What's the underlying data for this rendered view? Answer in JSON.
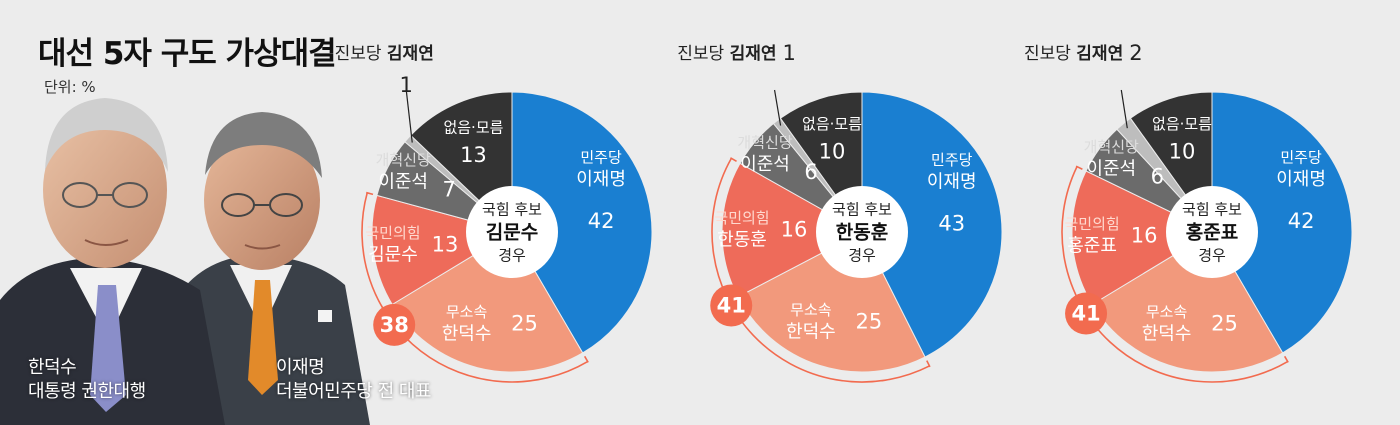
{
  "header": {
    "title": "대선 5자 구도 가상대결",
    "unit": "단위: %"
  },
  "people": [
    {
      "name": "한덕수",
      "role": "대통령 권한대행"
    },
    {
      "name": "이재명",
      "role": "더불어민주당 전 대표"
    }
  ],
  "colors": {
    "democratic": "#1a7fd1",
    "independent": "#f2997c",
    "ppp": "#ee6b5a",
    "reform": "#6b6b6b",
    "none": "#333333",
    "progressive": "#bdbdbd",
    "combined_circle": "#f26b4f"
  },
  "chart_data": [
    {
      "type": "pie",
      "center": {
        "line1": "국힘 후보",
        "line2": "김문수",
        "line3": "경우"
      },
      "combined_total": "38",
      "slices": [
        {
          "party": "민주당",
          "name": "이재명",
          "value": 42,
          "color_key": "democratic"
        },
        {
          "party": "무소속",
          "name": "한덕수",
          "value": 25,
          "color_key": "independent"
        },
        {
          "party": "국민의힘",
          "name": "김문수",
          "value": 13,
          "color_key": "ppp"
        },
        {
          "party": "개혁신당",
          "name": "이준석",
          "value": 7,
          "color_key": "reform"
        },
        {
          "party": "진보당",
          "name": "김재연",
          "value": 1,
          "color_key": "progressive"
        },
        {
          "party": "없음·모름",
          "name": "",
          "value": 13,
          "color_key": "none"
        }
      ]
    },
    {
      "type": "pie",
      "center": {
        "line1": "국힘 후보",
        "line2": "한동훈",
        "line3": "경우"
      },
      "combined_total": "41",
      "slices": [
        {
          "party": "민주당",
          "name": "이재명",
          "value": 43,
          "color_key": "democratic"
        },
        {
          "party": "무소속",
          "name": "한덕수",
          "value": 25,
          "color_key": "independent"
        },
        {
          "party": "국민의힘",
          "name": "한동훈",
          "value": 16,
          "color_key": "ppp"
        },
        {
          "party": "개혁신당",
          "name": "이준석",
          "value": 6,
          "color_key": "reform"
        },
        {
          "party": "진보당",
          "name": "김재연",
          "value": 1,
          "color_key": "progressive"
        },
        {
          "party": "없음·모름",
          "name": "",
          "value": 10,
          "color_key": "none"
        }
      ]
    },
    {
      "type": "pie",
      "center": {
        "line1": "국힘 후보",
        "line2": "홍준표",
        "line3": "경우"
      },
      "combined_total": "41",
      "slices": [
        {
          "party": "민주당",
          "name": "이재명",
          "value": 42,
          "color_key": "democratic"
        },
        {
          "party": "무소속",
          "name": "한덕수",
          "value": 25,
          "color_key": "independent"
        },
        {
          "party": "국민의힘",
          "name": "홍준표",
          "value": 16,
          "color_key": "ppp"
        },
        {
          "party": "개혁신당",
          "name": "이준석",
          "value": 6,
          "color_key": "reform"
        },
        {
          "party": "진보당",
          "name": "김재연",
          "value": 2,
          "color_key": "progressive"
        },
        {
          "party": "없음·모름",
          "name": "",
          "value": 10,
          "color_key": "none"
        }
      ]
    }
  ]
}
